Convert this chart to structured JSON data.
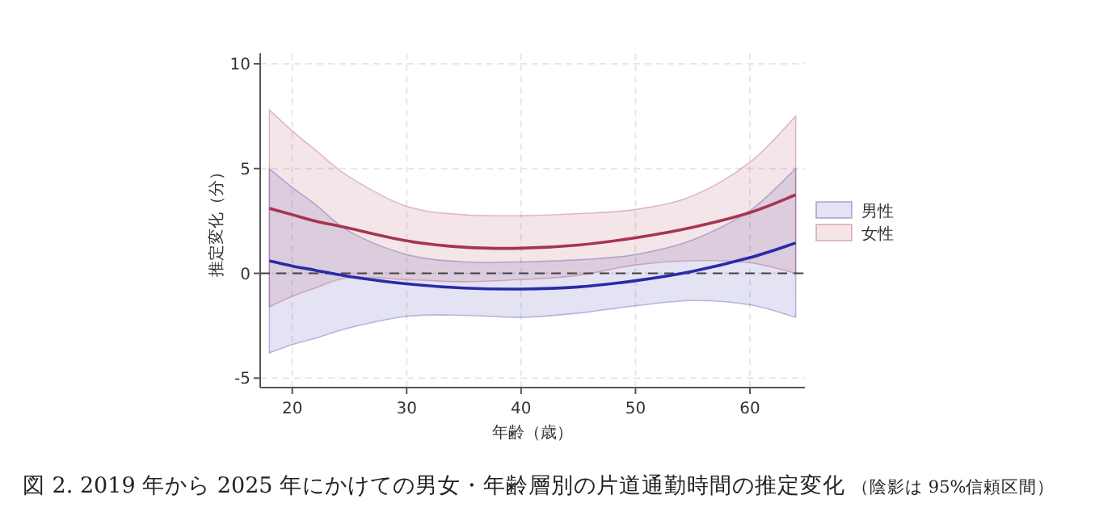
{
  "chart_data": {
    "type": "line",
    "xlabel": "年齢（歳）",
    "ylabel": "推定変化（分）",
    "annotations": [
      "図 2.  2019 年から 2025 年にかけての男女・年齢層別の片道通勤時間の推定変化",
      "（陰影は 95%信頼区間）"
    ],
    "xlim": [
      17.2,
      64.8
    ],
    "ylim": [
      -5.45,
      10.5
    ],
    "xticks": [
      20,
      30,
      40,
      50,
      60
    ],
    "yticks": [
      -5,
      0,
      5,
      10
    ],
    "grid": true,
    "legend": "right",
    "line_style": "solid",
    "marker": "none",
    "ref_lines": [
      {
        "axis": "y",
        "value": 0,
        "line_style": "dashed",
        "color": "#444444"
      }
    ],
    "series": [
      {
        "name": "男性",
        "color": "#2a2aa8",
        "x": [
          18,
          20,
          22,
          25,
          30,
          35,
          40,
          45,
          50,
          55,
          60,
          64
        ],
        "values": [
          0.6,
          0.35,
          0.15,
          -0.15,
          -0.5,
          -0.7,
          -0.75,
          -0.65,
          -0.35,
          0.1,
          0.75,
          1.45
        ],
        "lower": [
          -3.8,
          -3.4,
          -3.1,
          -2.6,
          -2.05,
          -2.0,
          -2.1,
          -1.9,
          -1.55,
          -1.3,
          -1.5,
          -2.1
        ],
        "upper": [
          5.0,
          4.1,
          3.3,
          2.0,
          0.9,
          0.55,
          0.55,
          0.65,
          0.9,
          1.6,
          3.0,
          5.0
        ]
      },
      {
        "name": "女性",
        "color": "#a8344f",
        "x": [
          18,
          20,
          22,
          25,
          30,
          35,
          40,
          45,
          50,
          55,
          60,
          64
        ],
        "values": [
          3.1,
          2.8,
          2.5,
          2.15,
          1.55,
          1.25,
          1.2,
          1.35,
          1.7,
          2.2,
          2.9,
          3.75
        ],
        "lower": [
          -1.6,
          -1.1,
          -0.7,
          -0.2,
          -0.3,
          -0.4,
          -0.3,
          -0.1,
          0.4,
          0.6,
          0.5,
          0.0
        ],
        "upper": [
          7.8,
          6.8,
          5.9,
          4.6,
          3.2,
          2.8,
          2.75,
          2.85,
          3.05,
          3.7,
          5.3,
          7.5
        ]
      }
    ]
  }
}
